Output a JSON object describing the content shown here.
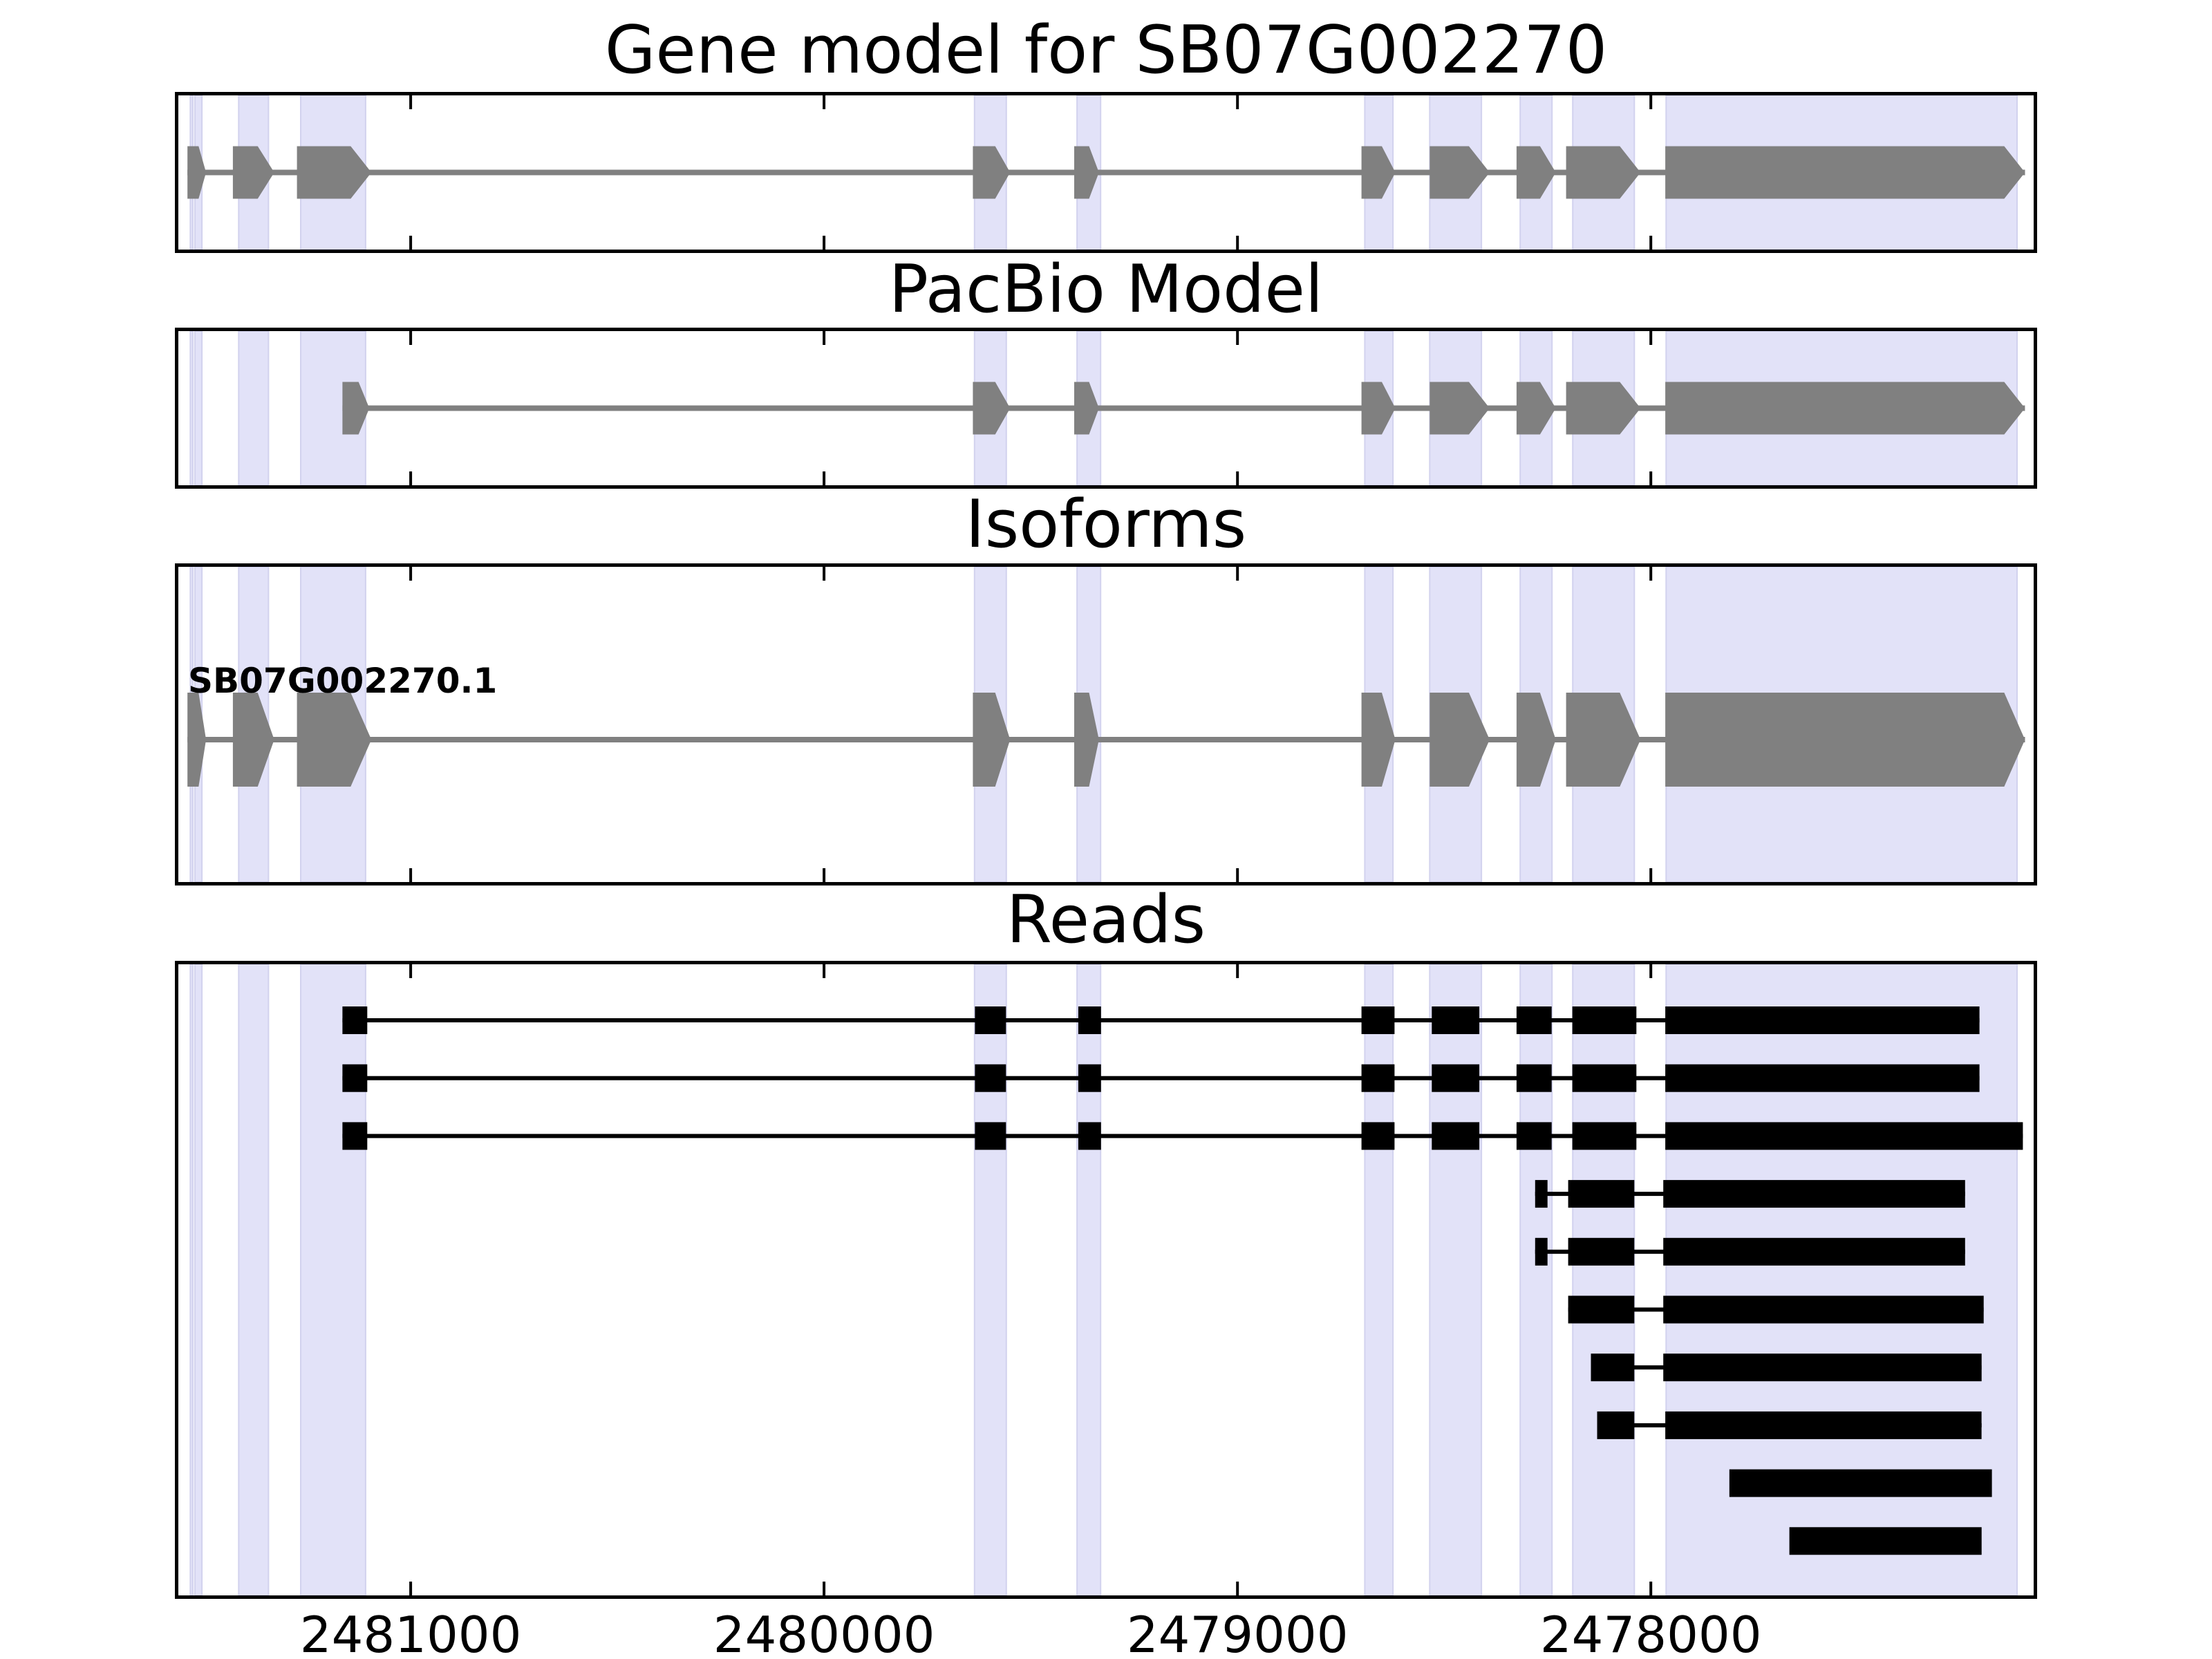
{
  "colors": {
    "exon_fill": "#808080",
    "intron_line": "#808080",
    "read_fill": "#000000",
    "highlight_fill": "#e2e2f8",
    "highlight_edge": "#d2d2ee",
    "panel_border": "#000000",
    "tick": "#000000",
    "background": "#ffffff",
    "text": "#000000"
  },
  "chart_data": {
    "type": "genome-tracks",
    "gene_id": "SB07G002270",
    "x_axis": {
      "domain": [
        2481562,
        2477074
      ],
      "orientation": "reversed",
      "ticks": [
        2481000,
        2480000,
        2479000,
        2478000
      ],
      "tick_labels": [
        "2481000",
        "2480000",
        "2479000",
        "2478000"
      ]
    },
    "highlight_regions": [
      [
        2481533,
        2481527
      ],
      [
        2481522,
        2481505
      ],
      [
        2481416,
        2481344
      ],
      [
        2481266,
        2481109
      ],
      [
        2479636,
        2479559
      ],
      [
        2479388,
        2479331
      ],
      [
        2478692,
        2478624
      ],
      [
        2478535,
        2478410
      ],
      [
        2478316,
        2478239
      ],
      [
        2478189,
        2478040
      ],
      [
        2477963,
        2477114
      ]
    ],
    "panels": [
      {
        "key": "gene_model",
        "title": "Gene model for SB07G002270",
        "type": "transcript",
        "strand_arrows": "right",
        "exons": [
          [
            2481540,
            2481495
          ],
          [
            2481430,
            2481330
          ],
          [
            2481275,
            2481095
          ],
          [
            2479640,
            2479550
          ],
          [
            2479395,
            2479335
          ],
          [
            2478700,
            2478618
          ],
          [
            2478535,
            2478390
          ],
          [
            2478325,
            2478230
          ],
          [
            2478205,
            2478025
          ],
          [
            2477965,
            2477095
          ]
        ]
      },
      {
        "key": "pacbio_model",
        "title": "PacBio Model",
        "type": "transcript",
        "strand_arrows": "right",
        "exons": [
          [
            2481165,
            2481100
          ],
          [
            2479640,
            2479550
          ],
          [
            2479395,
            2479335
          ],
          [
            2478700,
            2478618
          ],
          [
            2478535,
            2478390
          ],
          [
            2478325,
            2478230
          ],
          [
            2478205,
            2478025
          ],
          [
            2477965,
            2477095
          ]
        ]
      },
      {
        "key": "isoforms",
        "title": "Isoforms",
        "type": "transcript",
        "strand_arrows": "right",
        "transcript_label": "SB07G002270.1",
        "exons": [
          [
            2481540,
            2481495
          ],
          [
            2481430,
            2481330
          ],
          [
            2481275,
            2481095
          ],
          [
            2479640,
            2479550
          ],
          [
            2479395,
            2479335
          ],
          [
            2478700,
            2478618
          ],
          [
            2478535,
            2478390
          ],
          [
            2478325,
            2478230
          ],
          [
            2478205,
            2478025
          ],
          [
            2477965,
            2477095
          ]
        ]
      },
      {
        "key": "reads",
        "title": "Reads",
        "type": "reads",
        "reads": [
          [
            [
              2481165,
              2481105
            ],
            [
              2479635,
              2479560
            ],
            [
              2479385,
              2479330
            ],
            [
              2478700,
              2478620
            ],
            [
              2478530,
              2478415
            ],
            [
              2478325,
              2478240
            ],
            [
              2478190,
              2478035
            ],
            [
              2477965,
              2477205
            ]
          ],
          [
            [
              2481165,
              2481105
            ],
            [
              2479635,
              2479560
            ],
            [
              2479385,
              2479330
            ],
            [
              2478700,
              2478620
            ],
            [
              2478530,
              2478415
            ],
            [
              2478325,
              2478240
            ],
            [
              2478190,
              2478035
            ],
            [
              2477965,
              2477205
            ]
          ],
          [
            [
              2481165,
              2481105
            ],
            [
              2479635,
              2479560
            ],
            [
              2479385,
              2479330
            ],
            [
              2478700,
              2478620
            ],
            [
              2478530,
              2478415
            ],
            [
              2478325,
              2478240
            ],
            [
              2478190,
              2478035
            ],
            [
              2477965,
              2477100
            ]
          ],
          [
            [
              2478280,
              2478250
            ],
            [
              2478200,
              2478040
            ],
            [
              2477970,
              2477240
            ]
          ],
          [
            [
              2478280,
              2478250
            ],
            [
              2478200,
              2478040
            ],
            [
              2477970,
              2477240
            ]
          ],
          [
            [
              2478200,
              2478040
            ],
            [
              2477970,
              2477195
            ]
          ],
          [
            [
              2478145,
              2478040
            ],
            [
              2477970,
              2477200
            ]
          ],
          [
            [
              2478130,
              2478040
            ],
            [
              2477965,
              2477200
            ]
          ],
          [
            [
              2477810,
              2477175
            ]
          ],
          [
            [
              2477665,
              2477200
            ]
          ]
        ]
      }
    ]
  }
}
